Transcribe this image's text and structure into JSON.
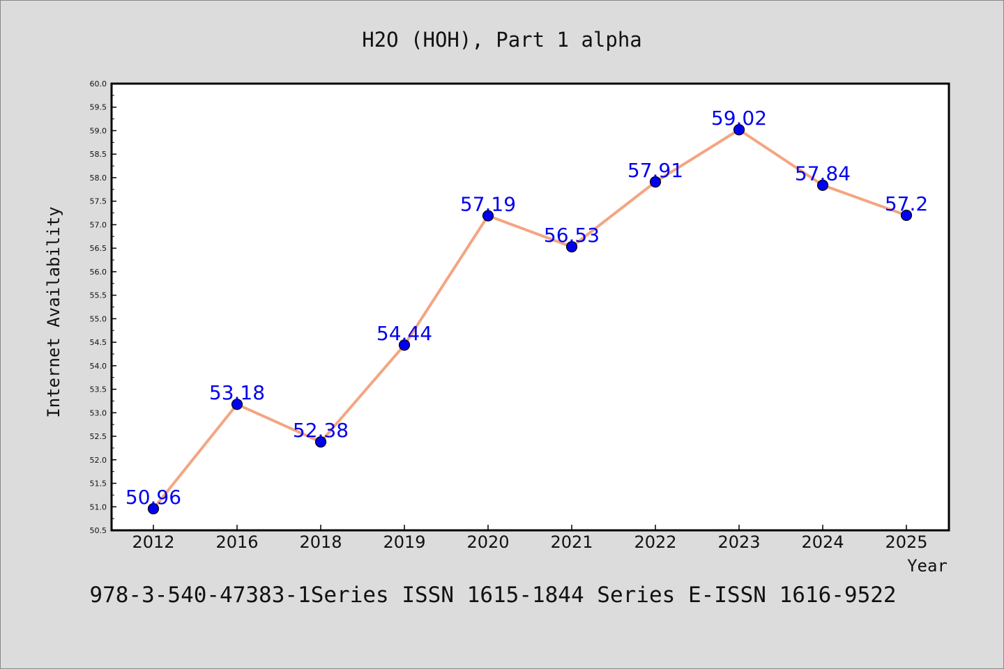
{
  "chart_data": {
    "type": "line",
    "title": "H2O (HOH), Part 1 alpha",
    "xlabel": "Year",
    "ylabel": "Internet Availability",
    "categories": [
      "2012",
      "2016",
      "2018",
      "2019",
      "2020",
      "2021",
      "2022",
      "2023",
      "2024",
      "2025"
    ],
    "series": [
      {
        "values": [
          50.96,
          53.18,
          52.38,
          54.44,
          57.19,
          56.53,
          57.91,
          59.02,
          57.84,
          57.2
        ],
        "labels": [
          "50.96",
          "53.18",
          "52.38",
          "54.44",
          "57.19",
          "56.53",
          "57.91",
          "59.02",
          "57.84",
          "57.2"
        ],
        "line_color": "#f4a582",
        "marker_color": "#0000ee"
      }
    ],
    "ylim": [
      50.5,
      60.0
    ],
    "yticks": [
      "50.5",
      "51.0",
      "51.5",
      "52.0",
      "52.5",
      "53.0",
      "53.5",
      "54.0",
      "54.5",
      "55.0",
      "55.5",
      "56.0",
      "56.5",
      "57.0",
      "57.5",
      "58.0",
      "58.5",
      "59.0",
      "59.5",
      "60.0"
    ],
    "grid": false,
    "footer": "978-3-540-47383-1Series ISSN 1615-1844 Series E-ISSN 1616-9522"
  }
}
